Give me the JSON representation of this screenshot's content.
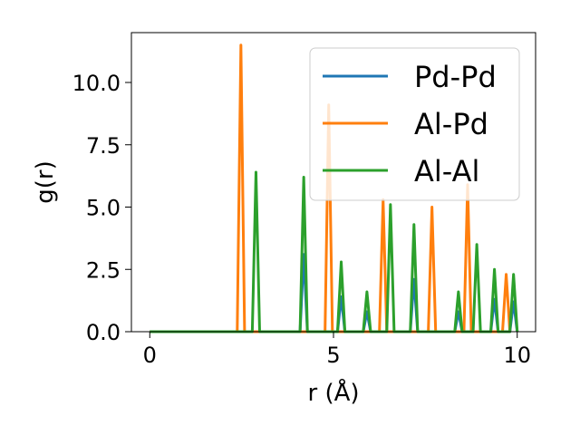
{
  "chart_data": {
    "type": "line",
    "xlabel": "r (Å)",
    "ylabel": "g(r)",
    "xlim": [
      -0.5,
      10.5
    ],
    "ylim": [
      0,
      12.0
    ],
    "xticks": [
      0,
      5,
      10
    ],
    "xtick_labels": [
      "0",
      "5",
      "10"
    ],
    "yticks": [
      0.0,
      2.5,
      5.0,
      7.5,
      10.0
    ],
    "ytick_labels": [
      "0.0",
      "2.5",
      "5.0",
      "7.5",
      "10.0"
    ],
    "grid": false,
    "legend_position": "top-right",
    "series": [
      {
        "name": "Pd-Pd",
        "color": "#1f77b4",
        "x": [
          0,
          4.09,
          4.19,
          4.29,
          5.11,
          5.21,
          5.31,
          5.81,
          5.91,
          6.01,
          7.09,
          7.19,
          7.29,
          8.3,
          8.4,
          8.5,
          9.28,
          9.38,
          9.48,
          9.8,
          9.9,
          10.0
        ],
        "y": [
          0,
          0,
          3.1,
          0,
          0,
          1.4,
          0,
          0,
          0.8,
          0,
          0,
          2.1,
          0,
          0,
          0.8,
          0,
          0,
          1.3,
          0,
          0,
          1.2,
          0
        ]
      },
      {
        "name": "Al-Pd",
        "color": "#ff7f0e",
        "x": [
          0,
          2.38,
          2.48,
          2.58,
          4.77,
          4.87,
          4.97,
          6.25,
          6.35,
          6.45,
          7.58,
          7.68,
          7.78,
          8.55,
          8.65,
          8.75,
          9.6,
          9.7,
          9.8
        ],
        "y": [
          0,
          0,
          11.5,
          0,
          0,
          9.1,
          0,
          0,
          5.3,
          0,
          0,
          5.0,
          0,
          0,
          5.9,
          0,
          0,
          2.3,
          0
        ]
      },
      {
        "name": "Al-Al",
        "color": "#2ca02c",
        "x": [
          0,
          2.79,
          2.89,
          2.99,
          4.09,
          4.19,
          4.29,
          5.11,
          5.21,
          5.31,
          5.81,
          5.91,
          6.01,
          6.45,
          6.55,
          6.65,
          7.09,
          7.19,
          7.29,
          8.3,
          8.4,
          8.5,
          8.8,
          8.9,
          9.0,
          9.28,
          9.38,
          9.48,
          9.8,
          9.9,
          10.0
        ],
        "y": [
          0,
          0,
          6.4,
          0,
          0,
          6.2,
          0,
          0,
          2.8,
          0,
          0,
          1.6,
          0,
          0,
          5.1,
          0,
          0,
          4.3,
          0,
          0,
          1.6,
          0,
          0,
          3.5,
          0,
          0,
          2.5,
          0,
          0,
          2.3,
          0
        ]
      }
    ]
  }
}
